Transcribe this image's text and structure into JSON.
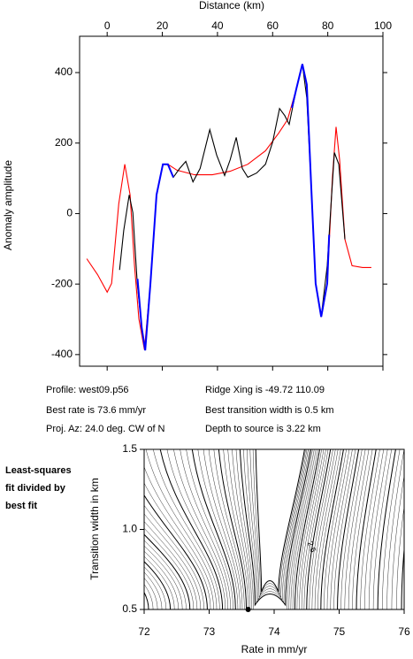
{
  "chart_data": [
    {
      "type": "line",
      "x_label": "Distance (km)",
      "y_label": "Anomaly amplitude",
      "xlim": [
        -10,
        100
      ],
      "ylim": [
        -433,
        503
      ],
      "xticks": [
        0,
        20,
        40,
        60,
        80,
        100
      ],
      "yticks": [
        -400,
        -200,
        0,
        200,
        400
      ],
      "series": [
        {
          "color": "#ff0000",
          "x": [
            -7.4,
            -3.5,
            0,
            1.6,
            4.2,
            6.4,
            8.3,
            9.9,
            11.5,
            13.5,
            15.4,
            17.9,
            20.2,
            22,
            25.3,
            31.7,
            38.1,
            44.6,
            51,
            57.4,
            62.2,
            65.4,
            68.6,
            70.8,
            72.4,
            74,
            75.6,
            77.6,
            79.8,
            81.7,
            83,
            84.3,
            86.2,
            88.8,
            92.6,
            95.8
          ],
          "values": [
            -128,
            -173,
            -223,
            -198,
            28,
            140,
            53,
            -148,
            -298,
            -386,
            -223,
            53,
            140,
            140,
            123,
            110,
            110,
            120,
            140,
            178,
            228,
            266,
            354,
            424,
            366,
            78,
            -198,
            -293,
            -198,
            103,
            246,
            153,
            -73,
            -148,
            -153,
            -153
          ]
        },
        {
          "color": "#000000",
          "x": [
            4.5,
            6,
            8,
            9.3,
            10.9,
            12.5,
            13.8,
            15.7,
            17.9,
            20.2,
            22.1,
            24,
            26.3,
            28.5,
            31.1,
            33.7,
            37.2,
            39.7,
            42.6,
            44.6,
            46.8,
            49,
            51,
            54.2,
            57.4,
            60,
            62.5,
            64.4,
            66,
            68.6,
            70.8,
            72.4,
            74,
            75.6,
            77.6,
            79.8,
            81.4,
            82.4,
            84,
            86.2
          ],
          "values": [
            -160,
            -48,
            53,
            3,
            -198,
            -323,
            -388,
            -198,
            53,
            140,
            140,
            103,
            128,
            148,
            90,
            128,
            238,
            166,
            108,
            153,
            216,
            128,
            103,
            115,
            140,
            203,
            298,
            278,
            253,
            354,
            424,
            328,
            78,
            -198,
            -293,
            -148,
            53,
            173,
            140,
            -73
          ]
        },
        {
          "color": "#0000ff",
          "x": [
            11,
            12.5,
            13.8,
            15.7,
            17.9,
            20.2,
            22,
            24,
            45,
            67,
            68.6,
            70.8,
            72.4,
            74,
            75.6,
            77.6,
            79.8,
            80.5
          ],
          "values": [
            -185,
            -323,
            -388,
            -198,
            53,
            140,
            140,
            103,
            null,
            300,
            354,
            424,
            366,
            78,
            -198,
            -293,
            -198,
            -60
          ]
        }
      ],
      "annotations": [
        "Profile: west09.p56",
        "Best rate is 73.6 mm/yr",
        "Proj. Az: 24.0 deg. CW of N",
        "Ridge Xing is -49.72 110.09",
        "Best transition width is 0.5 km",
        "Depth to source is   3.22 km"
      ]
    },
    {
      "type": "contour",
      "title_lines": [
        "Least-squares",
        "fit divided by",
        "best fit"
      ],
      "x_label": "Rate in mm/yr",
      "y_label": "Transition width in km",
      "xlim": [
        72,
        76
      ],
      "ylim": [
        0.5,
        1.5
      ],
      "xticks": [
        72,
        73,
        74,
        75,
        76
      ],
      "yticks": [
        {
          "value": 0.5,
          "label": "0.5"
        },
        {
          "value": 1.0,
          "label": "1.0"
        },
        {
          "value": 1.5,
          "label": "1.5"
        }
      ],
      "best_fit": {
        "x": 73.6,
        "y": 0.5
      },
      "contour_labels": [
        {
          "x": 74.57,
          "y": 0.89,
          "level": 2.5
        }
      ]
    }
  ]
}
